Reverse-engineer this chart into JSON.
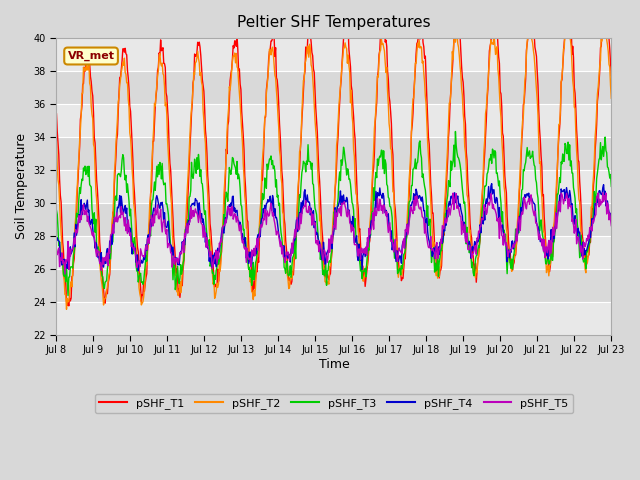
{
  "title": "Peltier SHF Temperatures",
  "ylabel": "Soil Temperature",
  "xlabel": "Time",
  "annotation": "VR_met",
  "ylim": [
    22,
    40
  ],
  "background_color": "#d8d8d8",
  "plot_bg_color": "#e8e8e8",
  "series": {
    "pSHF_T1": {
      "color": "#ff0000",
      "lw": 1.2
    },
    "pSHF_T2": {
      "color": "#ff8800",
      "lw": 1.2
    },
    "pSHF_T3": {
      "color": "#00cc00",
      "lw": 1.2
    },
    "pSHF_T4": {
      "color": "#0000cc",
      "lw": 1.2
    },
    "pSHF_T5": {
      "color": "#bb00bb",
      "lw": 1.2
    }
  },
  "x_tick_labels": [
    "Jul 8",
    "Jul 9",
    "Jul 10",
    "Jul 11",
    "Jul 12",
    "Jul 13",
    "Jul 14",
    "Jul 15",
    "Jul 16",
    "Jul 17",
    "Jul 18",
    "Jul 19",
    "Jul 20",
    "Jul 21",
    "Jul 22",
    "Jul 23"
  ],
  "n_days": 15,
  "start_day": 8,
  "seed": 42
}
